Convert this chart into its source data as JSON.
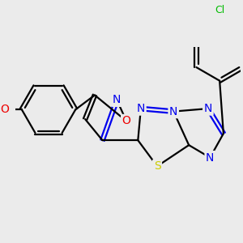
{
  "background_color": "#ebebeb",
  "atom_colors": {
    "C": "#000000",
    "N": "#0000ee",
    "O": "#ee0000",
    "S": "#cccc00",
    "Cl": "#00bb00"
  },
  "bond_color": "#000000",
  "bond_width": 1.6,
  "font_size_atoms": 10,
  "bg": "#ebebeb"
}
